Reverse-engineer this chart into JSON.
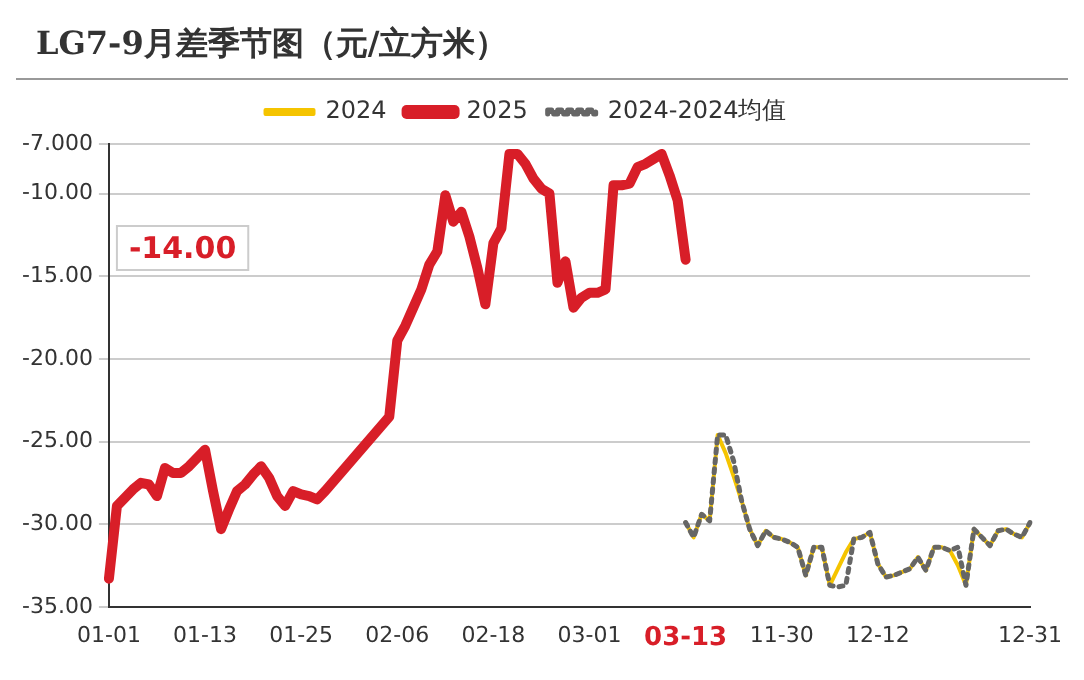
{
  "chart_data": {
    "type": "line",
    "title": "LG7-9月差季节图（元/立方米）",
    "categories": [
      "01-01",
      null,
      null,
      null,
      null,
      null,
      null,
      null,
      null,
      null,
      null,
      null,
      "01-13",
      null,
      null,
      null,
      null,
      null,
      null,
      null,
      null,
      null,
      null,
      null,
      "01-25",
      null,
      null,
      null,
      null,
      null,
      null,
      null,
      null,
      null,
      null,
      null,
      "02-06",
      null,
      null,
      null,
      null,
      null,
      null,
      null,
      null,
      null,
      null,
      null,
      "02-18",
      null,
      null,
      null,
      null,
      null,
      null,
      null,
      null,
      null,
      null,
      null,
      "03-01",
      null,
      null,
      null,
      null,
      null,
      null,
      null,
      null,
      null,
      null,
      null,
      "03-13",
      null,
      null,
      null,
      null,
      null,
      null,
      null,
      null,
      null,
      null,
      null,
      "11-30",
      null,
      null,
      null,
      null,
      null,
      null,
      null,
      null,
      null,
      null,
      null,
      "12-12",
      null,
      null,
      null,
      null,
      null,
      null,
      null,
      null,
      null,
      null,
      null,
      null,
      null,
      null,
      null,
      null,
      null,
      null,
      "12-31"
    ],
    "series": [
      {
        "name": "2024",
        "color": "#f5c400",
        "values": [
          null,
          null,
          null,
          null,
          null,
          null,
          null,
          null,
          null,
          null,
          null,
          null,
          null,
          null,
          null,
          null,
          null,
          null,
          null,
          null,
          null,
          null,
          null,
          null,
          null,
          null,
          null,
          null,
          null,
          null,
          null,
          null,
          null,
          null,
          null,
          null,
          null,
          null,
          null,
          null,
          null,
          null,
          null,
          null,
          null,
          null,
          null,
          null,
          null,
          null,
          null,
          null,
          null,
          null,
          null,
          null,
          null,
          null,
          null,
          null,
          null,
          null,
          null,
          null,
          null,
          null,
          null,
          null,
          null,
          null,
          null,
          null,
          -29.9,
          -30.8,
          -29.4,
          -29.8,
          -24.6,
          -25.7,
          -27.1,
          -28.6,
          -30.3,
          -31.3,
          -30.4,
          -30.8,
          -30.9,
          -31.1,
          -31.4,
          -33.1,
          -31.4,
          -31.4,
          -33.7,
          -32.7,
          -31.7,
          -30.9,
          -30.8,
          -30.5,
          -32.4,
          -33.2,
          -33.1,
          -32.9,
          -32.7,
          -32.0,
          -32.8,
          -31.4,
          -31.4,
          -31.6,
          -32.5,
          -33.7,
          -30.3,
          -30.8,
          -31.3,
          -30.4,
          -30.3,
          -30.6,
          -30.8,
          -29.9
        ]
      },
      {
        "name": "2025",
        "color": "#d81e28",
        "values": [
          -33.3,
          -28.9,
          -28.4,
          -27.9,
          -27.5,
          -27.6,
          -28.3,
          -26.6,
          -26.9,
          -26.9,
          -26.5,
          -26.0,
          -25.5,
          -28.0,
          -30.3,
          -29.1,
          -28.0,
          -27.6,
          -27.0,
          -26.5,
          -27.2,
          -28.3,
          -28.9,
          -28.0,
          -28.2,
          -28.3,
          -28.5,
          -28.0,
          null,
          null,
          null,
          null,
          null,
          null,
          null,
          -23.5,
          -18.9,
          -18.0,
          -16.9,
          -15.8,
          -14.3,
          -13.5,
          -10.1,
          -11.7,
          -11.1,
          -12.6,
          -14.5,
          -16.7,
          -13.0,
          -12.1,
          -7.6,
          -7.6,
          -8.2,
          -9.1,
          -9.7,
          -10.0,
          -15.4,
          -14.1,
          -16.9,
          -16.3,
          -16.0,
          -16.0,
          -15.8,
          -9.5,
          -9.5,
          -9.4,
          -8.4,
          -8.2,
          -7.9,
          -7.6,
          -8.9,
          -10.4,
          -14.0,
          null,
          null,
          null,
          null,
          null,
          null,
          null,
          null,
          null,
          null,
          null,
          null,
          null,
          null,
          null,
          null,
          null,
          null,
          null,
          null,
          null,
          null,
          null,
          null,
          null,
          null,
          null,
          null,
          null,
          null,
          null,
          null,
          null,
          null,
          null,
          null,
          null,
          null,
          null,
          null,
          null,
          null,
          null
        ]
      },
      {
        "name": "2024-2024均值",
        "color": "#666666",
        "line_style": "dotted",
        "values": [
          null,
          null,
          null,
          null,
          null,
          null,
          null,
          null,
          null,
          null,
          null,
          null,
          null,
          null,
          null,
          null,
          null,
          null,
          null,
          null,
          null,
          null,
          null,
          null,
          null,
          null,
          null,
          null,
          null,
          null,
          null,
          null,
          null,
          null,
          null,
          null,
          null,
          null,
          null,
          null,
          null,
          null,
          null,
          null,
          null,
          null,
          null,
          null,
          null,
          null,
          null,
          null,
          null,
          null,
          null,
          null,
          null,
          null,
          null,
          null,
          null,
          null,
          null,
          null,
          null,
          null,
          null,
          null,
          null,
          null,
          null,
          null,
          -29.9,
          -30.8,
          -29.4,
          -29.8,
          -24.6,
          -24.6,
          -26.2,
          -28.6,
          -30.3,
          -31.3,
          -30.4,
          -30.8,
          -30.9,
          -31.1,
          -31.4,
          -33.1,
          -31.4,
          -31.4,
          -33.7,
          -33.8,
          -33.7,
          -30.9,
          -30.8,
          -30.5,
          -32.4,
          -33.2,
          -33.1,
          -32.9,
          -32.7,
          -32.0,
          -32.8,
          -31.4,
          -31.4,
          -31.6,
          -31.4,
          -33.7,
          -30.3,
          -30.8,
          -31.3,
          -30.4,
          -30.3,
          -30.6,
          -30.8,
          -29.9
        ]
      }
    ],
    "ylim": [
      -35,
      -7
    ],
    "yticks": [
      {
        "value": -35,
        "label": "-35.00"
      },
      {
        "value": -30,
        "label": "-30.00"
      },
      {
        "value": -25,
        "label": "-25.00"
      },
      {
        "value": -20,
        "label": "-20.00"
      },
      {
        "value": -15,
        "label": "-15.00"
      },
      {
        "value": -10,
        "label": "-10.00"
      },
      {
        "value": -7,
        "label": "-7.000"
      }
    ],
    "annotations": [
      "-14.00"
    ],
    "grid": "y",
    "legend": "top",
    "marker": "none"
  }
}
